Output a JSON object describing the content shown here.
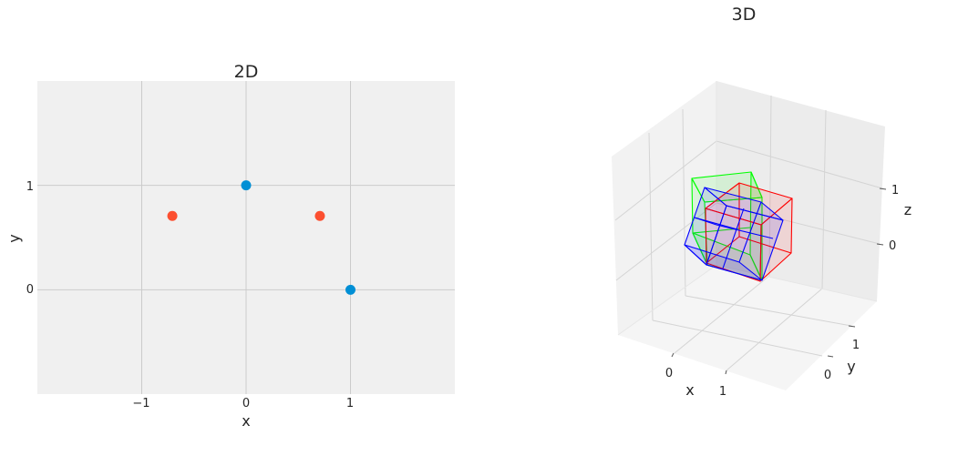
{
  "colors": {
    "panel_bg": "#f0f0f0",
    "grid": "#cbcbcb",
    "text": "#262626",
    "series_blue": "#008fd5",
    "series_orange": "#fc4f30",
    "cube_red": "#ff0000",
    "cube_green": "#00ff00",
    "cube_blue": "#0000ff"
  },
  "chart_data": [
    {
      "type": "scatter",
      "title": "2D",
      "xlabel": "x",
      "ylabel": "y",
      "xlim": [
        -2,
        2
      ],
      "ylim": [
        -1,
        2
      ],
      "xticks": [
        -1,
        0,
        1
      ],
      "xtick_labels": [
        "−1",
        "0",
        "1"
      ],
      "yticks": [
        0,
        1
      ],
      "ytick_labels": [
        "0",
        "1"
      ],
      "grid": true,
      "series": [
        {
          "color": "#008fd5",
          "points": [
            [
              0,
              1
            ],
            [
              1,
              0
            ]
          ]
        },
        {
          "color": "#fc4f30",
          "points": [
            [
              -0.707,
              0.707
            ],
            [
              0.707,
              0.707
            ]
          ]
        }
      ]
    },
    {
      "type": "3d-wireframe",
      "title": "3D",
      "xlabel": "x",
      "ylabel": "y",
      "zlabel": "z",
      "xtick_labels": [
        "0",
        "1"
      ],
      "ytick_labels": [
        "0",
        "1"
      ],
      "ztick_labels": [
        "0",
        "1"
      ],
      "grid": true,
      "solids": [
        {
          "color": "#ff0000",
          "description": "axis-aligned unit cube"
        },
        {
          "color": "#00ff00",
          "description": "unit cube rotated about one axis"
        },
        {
          "color": "#0000ff",
          "description": "unit cube rotated about two axes"
        }
      ]
    }
  ]
}
